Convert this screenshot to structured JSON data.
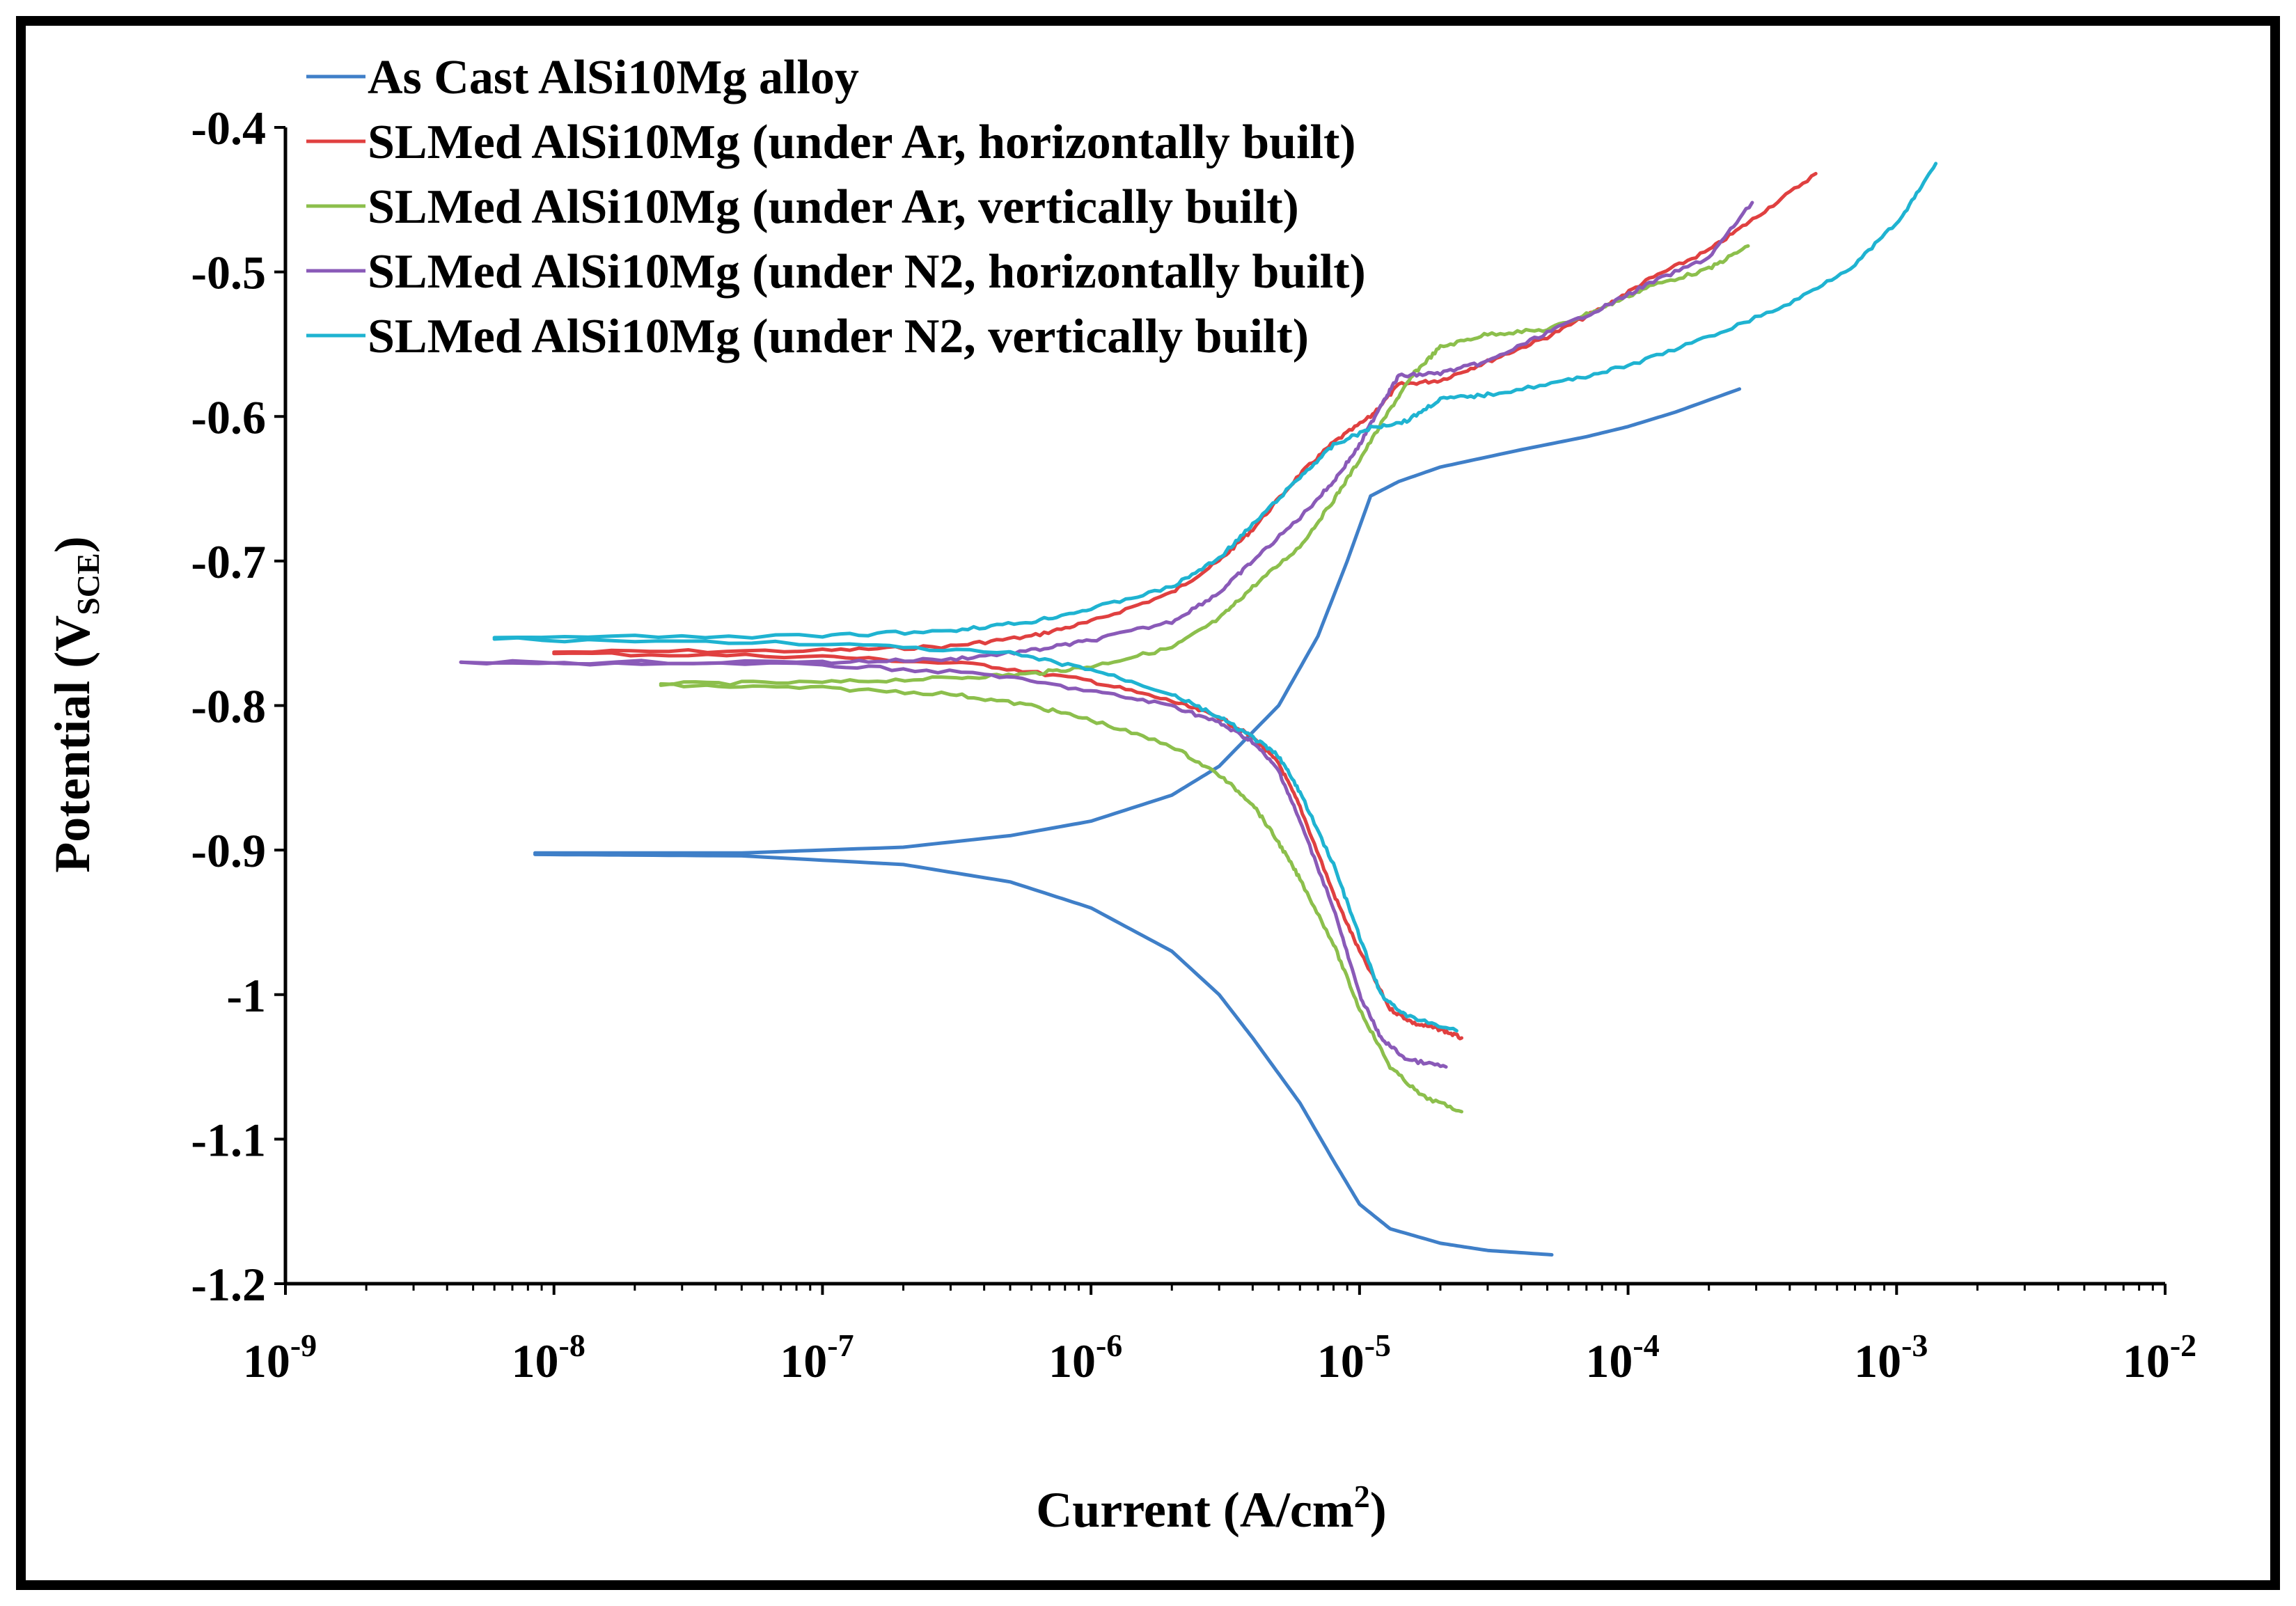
{
  "chart_data": {
    "type": "line",
    "title": "",
    "xlabel": "Current (A/cm",
    "xlabel_sup": "2",
    "xlabel_end": ")",
    "ylabel": "Potential (V",
    "ylabel_sub": "SCE",
    "ylabel_end": ")",
    "x_scale": "log",
    "xlim": [
      1e-09,
      0.01
    ],
    "ylim": [
      -1.2,
      -0.4
    ],
    "x_ticks": [
      {
        "exp": -9,
        "base": "10",
        "sup": "-9"
      },
      {
        "exp": -8,
        "base": "10",
        "sup": "-8"
      },
      {
        "exp": -7,
        "base": "10",
        "sup": "-7"
      },
      {
        "exp": -6,
        "base": "10",
        "sup": "-6"
      },
      {
        "exp": -5,
        "base": "10",
        "sup": "-5"
      },
      {
        "exp": -4,
        "base": "10",
        "sup": "-4"
      },
      {
        "exp": -3,
        "base": "10",
        "sup": "-3"
      },
      {
        "exp": -2,
        "base": "10",
        "sup": "-2"
      }
    ],
    "y_ticks": [
      {
        "value": -0.4,
        "label": "-0.4"
      },
      {
        "value": -0.5,
        "label": "-0.5"
      },
      {
        "value": -0.6,
        "label": "-0.6"
      },
      {
        "value": -0.7,
        "label": "-0.7"
      },
      {
        "value": -0.8,
        "label": "-0.8"
      },
      {
        "value": -0.9,
        "label": "-0.9"
      },
      {
        "value": -1.0,
        "label": "-1"
      },
      {
        "value": -1.1,
        "label": "-1.1"
      },
      {
        "value": -1.2,
        "label": "-1.2"
      }
    ],
    "grid": false,
    "legend_position": "top-left",
    "series": [
      {
        "name": "As Cast AlSi10Mg alloy",
        "color": "#3f7fc8",
        "anodic": [
          [
            8.5e-09,
            -0.902
          ],
          [
            5e-08,
            -0.902
          ],
          [
            2e-07,
            -0.898
          ],
          [
            5e-07,
            -0.89
          ],
          [
            1e-06,
            -0.88
          ],
          [
            2e-06,
            -0.862
          ],
          [
            3e-06,
            -0.842
          ],
          [
            5e-06,
            -0.8
          ],
          [
            7e-06,
            -0.752
          ],
          [
            9e-06,
            -0.7
          ],
          [
            1.1e-05,
            -0.655
          ],
          [
            1.4e-05,
            -0.645
          ],
          [
            2e-05,
            -0.635
          ],
          [
            4e-05,
            -0.623
          ],
          [
            7e-05,
            -0.614
          ],
          [
            0.0001,
            -0.607
          ],
          [
            0.00015,
            -0.597
          ],
          [
            0.00026,
            -0.581
          ]
        ],
        "cathodic": [
          [
            8.5e-09,
            -0.903
          ],
          [
            5e-08,
            -0.904
          ],
          [
            2e-07,
            -0.91
          ],
          [
            5e-07,
            -0.922
          ],
          [
            1e-06,
            -0.94
          ],
          [
            2e-06,
            -0.97
          ],
          [
            3e-06,
            -1.0
          ],
          [
            4e-06,
            -1.03
          ],
          [
            6e-06,
            -1.075
          ],
          [
            8e-06,
            -1.115
          ],
          [
            1e-05,
            -1.145
          ],
          [
            1.3e-05,
            -1.162
          ],
          [
            2e-05,
            -1.172
          ],
          [
            3e-05,
            -1.177
          ],
          [
            5.2e-05,
            -1.18
          ]
        ]
      },
      {
        "name": "SLMed AlSi10Mg (under Ar, horizontally built)",
        "color": "#e04040",
        "anodic": [
          [
            1e-08,
            -0.763
          ],
          [
            1e-07,
            -0.762
          ],
          [
            3e-07,
            -0.759
          ],
          [
            6e-07,
            -0.752
          ],
          [
            1e-06,
            -0.742
          ],
          [
            2e-06,
            -0.722
          ],
          [
            3e-06,
            -0.7
          ],
          [
            4e-06,
            -0.678
          ],
          [
            6e-06,
            -0.64
          ],
          [
            8e-06,
            -0.618
          ],
          [
            1.1e-05,
            -0.6
          ],
          [
            1.4e-05,
            -0.578
          ],
          [
            2e-05,
            -0.575
          ],
          [
            3e-05,
            -0.562
          ],
          [
            5e-05,
            -0.545
          ],
          [
            8e-05,
            -0.525
          ],
          [
            0.00012,
            -0.505
          ],
          [
            0.0002,
            -0.485
          ],
          [
            0.0003,
            -0.462
          ],
          [
            0.0005,
            -0.432
          ]
        ],
        "cathodic": [
          [
            1e-08,
            -0.764
          ],
          [
            1e-07,
            -0.766
          ],
          [
            4e-07,
            -0.772
          ],
          [
            1e-06,
            -0.783
          ],
          [
            2e-06,
            -0.797
          ],
          [
            3e-06,
            -0.808
          ],
          [
            4e-06,
            -0.822
          ],
          [
            5e-06,
            -0.84
          ],
          [
            6e-06,
            -0.87
          ],
          [
            8e-06,
            -0.93
          ],
          [
            1e-05,
            -0.97
          ],
          [
            1.3e-05,
            -1.01
          ],
          [
            1.6e-05,
            -1.02
          ],
          [
            2e-05,
            -1.024
          ],
          [
            2.4e-05,
            -1.03
          ]
        ]
      },
      {
        "name": "SLMed AlSi10Mg (under Ar, vertically built)",
        "color": "#8cbf4c",
        "anodic": [
          [
            2.5e-08,
            -0.785
          ],
          [
            1e-07,
            -0.784
          ],
          [
            3e-07,
            -0.781
          ],
          [
            6e-07,
            -0.778
          ],
          [
            1e-06,
            -0.773
          ],
          [
            2e-06,
            -0.76
          ],
          [
            3e-06,
            -0.74
          ],
          [
            4e-06,
            -0.718
          ],
          [
            6e-06,
            -0.69
          ],
          [
            8e-06,
            -0.658
          ],
          [
            1e-05,
            -0.63
          ],
          [
            1.3e-05,
            -0.595
          ],
          [
            1.6e-05,
            -0.57
          ],
          [
            2e-05,
            -0.552
          ],
          [
            3e-05,
            -0.543
          ],
          [
            5e-05,
            -0.54
          ],
          [
            8e-05,
            -0.525
          ],
          [
            0.00012,
            -0.51
          ],
          [
            0.0002,
            -0.498
          ],
          [
            0.00028,
            -0.482
          ]
        ],
        "cathodic": [
          [
            2.5e-08,
            -0.786
          ],
          [
            1e-07,
            -0.788
          ],
          [
            3e-07,
            -0.792
          ],
          [
            6e-07,
            -0.8
          ],
          [
            1e-06,
            -0.81
          ],
          [
            2e-06,
            -0.828
          ],
          [
            3e-06,
            -0.848
          ],
          [
            4e-06,
            -0.868
          ],
          [
            5e-06,
            -0.895
          ],
          [
            6e-06,
            -0.92
          ],
          [
            8e-06,
            -0.965
          ],
          [
            1e-05,
            -1.01
          ],
          [
            1.3e-05,
            -1.05
          ],
          [
            1.7e-05,
            -1.07
          ],
          [
            2.4e-05,
            -1.081
          ]
        ]
      },
      {
        "name": "SLMed AlSi10Mg (under N2, horizontally built)",
        "color": "#8a5ab8",
        "anodic": [
          [
            4.5e-09,
            -0.77
          ],
          [
            1e-07,
            -0.77
          ],
          [
            3e-07,
            -0.768
          ],
          [
            6e-07,
            -0.762
          ],
          [
            1e-06,
            -0.755
          ],
          [
            2e-06,
            -0.742
          ],
          [
            3e-06,
            -0.722
          ],
          [
            4e-06,
            -0.7
          ],
          [
            6e-06,
            -0.67
          ],
          [
            8e-06,
            -0.645
          ],
          [
            1e-05,
            -0.62
          ],
          [
            1.2e-05,
            -0.592
          ],
          [
            1.4e-05,
            -0.572
          ],
          [
            2e-05,
            -0.57
          ],
          [
            3e-05,
            -0.562
          ],
          [
            5e-05,
            -0.542
          ],
          [
            8e-05,
            -0.525
          ],
          [
            0.00012,
            -0.508
          ],
          [
            0.0002,
            -0.49
          ],
          [
            0.00029,
            -0.452
          ]
        ],
        "cathodic": [
          [
            4.5e-09,
            -0.77
          ],
          [
            1e-07,
            -0.772
          ],
          [
            4e-07,
            -0.778
          ],
          [
            1e-06,
            -0.79
          ],
          [
            2e-06,
            -0.8
          ],
          [
            3e-06,
            -0.812
          ],
          [
            4e-06,
            -0.825
          ],
          [
            5e-06,
            -0.845
          ],
          [
            6e-06,
            -0.88
          ],
          [
            8e-06,
            -0.94
          ],
          [
            1e-05,
            -1.0
          ],
          [
            1.2e-05,
            -1.03
          ],
          [
            1.5e-05,
            -1.045
          ],
          [
            2.1e-05,
            -1.05
          ]
        ]
      },
      {
        "name": "SLMed AlSi10Mg (under N2, vertically built)",
        "color": "#1fb3d1",
        "anodic": [
          [
            6e-09,
            -0.753
          ],
          [
            1e-07,
            -0.752
          ],
          [
            3e-07,
            -0.748
          ],
          [
            6e-07,
            -0.742
          ],
          [
            1e-06,
            -0.733
          ],
          [
            2e-06,
            -0.718
          ],
          [
            3e-06,
            -0.698
          ],
          [
            4e-06,
            -0.675
          ],
          [
            6e-06,
            -0.642
          ],
          [
            8e-06,
            -0.62
          ],
          [
            1.1e-05,
            -0.608
          ],
          [
            1.5e-05,
            -0.603
          ],
          [
            2e-05,
            -0.588
          ],
          [
            3e-05,
            -0.585
          ],
          [
            6e-05,
            -0.575
          ],
          [
            0.0001,
            -0.565
          ],
          [
            0.0002,
            -0.545
          ],
          [
            0.0004,
            -0.522
          ],
          [
            0.0007,
            -0.495
          ],
          [
            0.00105,
            -0.462
          ],
          [
            0.0014,
            -0.425
          ]
        ],
        "cathodic": [
          [
            6e-09,
            -0.754
          ],
          [
            1e-07,
            -0.757
          ],
          [
            5e-07,
            -0.764
          ],
          [
            1e-06,
            -0.775
          ],
          [
            2e-06,
            -0.792
          ],
          [
            3e-06,
            -0.808
          ],
          [
            4e-06,
            -0.822
          ],
          [
            5e-06,
            -0.835
          ],
          [
            6e-06,
            -0.86
          ],
          [
            8e-06,
            -0.91
          ],
          [
            1e-05,
            -0.96
          ],
          [
            1.2e-05,
            -1.0
          ],
          [
            1.5e-05,
            -1.015
          ],
          [
            2.3e-05,
            -1.025
          ]
        ]
      }
    ]
  }
}
